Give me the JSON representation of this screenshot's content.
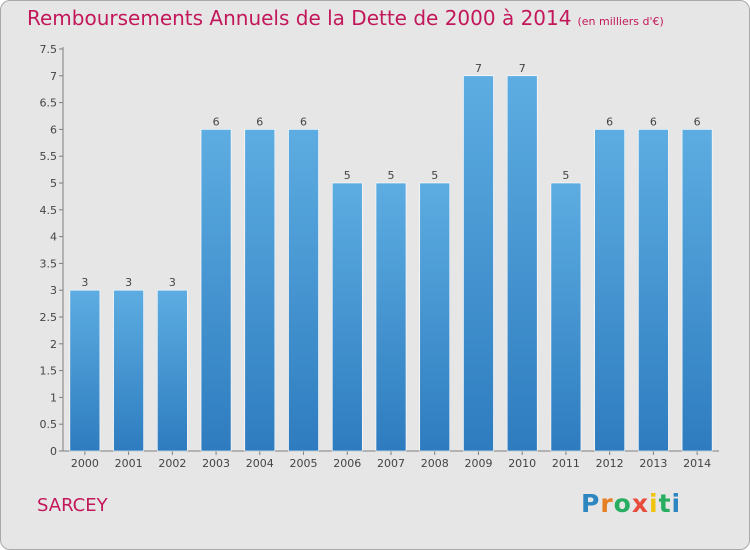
{
  "chart_data": {
    "type": "bar",
    "title": "Remboursements Annuels de la Dette de 2000 à 2014",
    "unit_note": "(en milliers d'€)",
    "categories": [
      "2000",
      "2001",
      "2002",
      "2003",
      "2004",
      "2005",
      "2006",
      "2007",
      "2008",
      "2009",
      "2010",
      "2011",
      "2012",
      "2013",
      "2014"
    ],
    "values": [
      3,
      3,
      3,
      6,
      6,
      6,
      5,
      5,
      5,
      7,
      7,
      5,
      6,
      6,
      6
    ],
    "ylim": [
      0,
      7.5
    ],
    "yticks": [
      "0",
      "0.5",
      "1",
      "1.5",
      "2",
      "2.5",
      "3",
      "3.5",
      "4",
      "4.5",
      "5",
      "5.5",
      "6",
      "6.5",
      "7",
      "7.5"
    ],
    "grid": false,
    "colors": {
      "bar_light": "#5dade2",
      "bar_dark": "#2e7cbf",
      "text": "#c2185b"
    }
  },
  "footer": {
    "city": "SARCEY"
  },
  "logo": {
    "letters": [
      "P",
      "r",
      "o",
      "x",
      "i",
      "t",
      "i"
    ],
    "colors": [
      "#2e86c1",
      "#e67e22",
      "#27ae60",
      "#e74c3c",
      "#f1c40f",
      "#27ae60",
      "#2e86c1"
    ]
  }
}
